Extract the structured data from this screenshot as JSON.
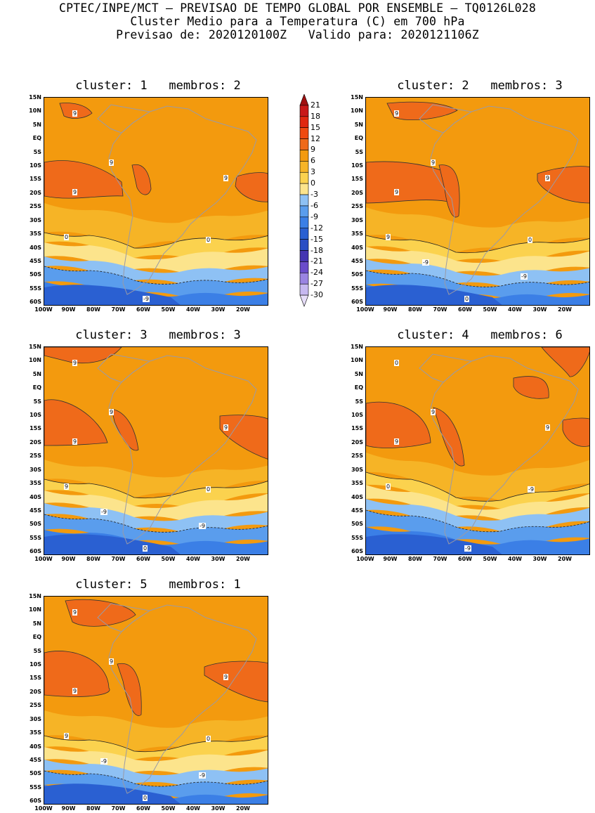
{
  "header": {
    "line1": "CPTEC/INPE/MCT – PREVISAO DE TEMPO GLOBAL POR ENSEMBLE – TQ0126L028",
    "line2": "Cluster Medio para a Temperatura (C) em 700 hPa",
    "line3": "Previsao de: 2020120100Z   Valido para: 2020121106Z"
  },
  "lat_ticks": [
    "15N",
    "10N",
    "5N",
    "EQ",
    "5S",
    "10S",
    "15S",
    "20S",
    "25S",
    "30S",
    "35S",
    "40S",
    "45S",
    "50S",
    "55S",
    "60S"
  ],
  "lon_ticks": [
    "100W",
    "90W",
    "80W",
    "70W",
    "60W",
    "50W",
    "40W",
    "30W",
    "20W"
  ],
  "colorbar": {
    "levels": [
      "21",
      "18",
      "15",
      "12",
      "9",
      "6",
      "3",
      "0",
      "-3",
      "-6",
      "-9",
      "-12",
      "-15",
      "-18",
      "-21",
      "-24",
      "-27",
      "-30"
    ],
    "colors": [
      "#a01010",
      "#c81818",
      "#e02810",
      "#f04a10",
      "#ef6a1a",
      "#f39a0e",
      "#f6b426",
      "#fbd24e",
      "#fce48c",
      "#8ec1f4",
      "#5a9ded",
      "#3b7fe6",
      "#2a60d2",
      "#2a4ec4",
      "#4535b2",
      "#6a4ccb",
      "#9a84e2",
      "#c6b8f0",
      "#e6ddf8"
    ]
  },
  "panels": [
    {
      "title": "cluster: 1   membros: 2",
      "contour_labels": [
        "9",
        "9",
        "9",
        "9",
        "0",
        "0",
        "-9"
      ]
    },
    {
      "title": "cluster: 2   membros: 3",
      "contour_labels": [
        "9",
        "9",
        "9",
        "9",
        "9",
        "0",
        "0",
        "-9",
        "-9"
      ]
    },
    {
      "title": "cluster: 3   membros: 3",
      "contour_labels": [
        "9",
        "9",
        "9",
        "9",
        "9",
        "0",
        "0",
        "-9",
        "-9"
      ]
    },
    {
      "title": "cluster: 4   membros: 6",
      "contour_labels": [
        "9",
        "9",
        "9",
        "0",
        "0",
        "-9",
        "-9"
      ]
    },
    {
      "title": "cluster: 5   membros: 1",
      "contour_labels": [
        "9",
        "9",
        "9",
        "9",
        "9",
        "0",
        "0",
        "-9",
        "-9"
      ]
    }
  ]
}
